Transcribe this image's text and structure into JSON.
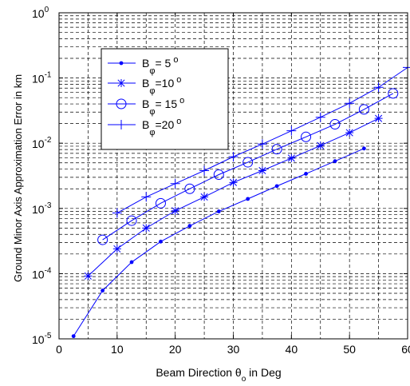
{
  "chart_data": {
    "type": "line",
    "xlabel": "Beam Direction θo in Deg",
    "xlabel_main": "Beam Direction θ",
    "xlabel_sub": "o",
    "xlabel_tail": " in Deg",
    "ylabel": "Ground Minor Axis Approximation Error in km",
    "xlim": [
      0,
      60
    ],
    "ylim": [
      1e-05,
      1
    ],
    "yscale": "log",
    "grid": true,
    "legend_position": "top-left",
    "x_ticks": [
      "0",
      "10",
      "20",
      "30",
      "40",
      "50",
      "60"
    ],
    "y_ticks": [
      {
        "base": "10",
        "exp": "-5"
      },
      {
        "base": "10",
        "exp": "-4"
      },
      {
        "base": "10",
        "exp": "-3"
      },
      {
        "base": "10",
        "exp": "-2"
      },
      {
        "base": "10",
        "exp": "-1"
      },
      {
        "base": "10",
        "exp": "0"
      }
    ],
    "series": [
      {
        "name": "Bφ = 5 o",
        "legend": {
          "b": "B",
          "sub": "φ",
          "eq": "= 5",
          "sup": "o"
        },
        "marker": "dot",
        "x": [
          2.5,
          7.5,
          12.5,
          17.5,
          22.5,
          27.5,
          32.5,
          37.5,
          42.5,
          47.5,
          52.5
        ],
        "y": [
          1.1e-05,
          5.5e-05,
          0.00015,
          0.00031,
          0.00054,
          0.0009,
          0.0014,
          0.0022,
          0.0034,
          0.0053,
          0.0083
        ]
      },
      {
        "name": "Bφ =10 o",
        "legend": {
          "b": "B",
          "sub": "φ",
          "eq": "=10",
          "sup": "o"
        },
        "marker": "star",
        "x": [
          5,
          10,
          15,
          20,
          25,
          30,
          35,
          40,
          45,
          50,
          55
        ],
        "y": [
          9.2e-05,
          0.00024,
          0.0005,
          0.00092,
          0.0015,
          0.0025,
          0.0038,
          0.0059,
          0.0092,
          0.0145,
          0.024
        ]
      },
      {
        "name": "Bφ = 15 o",
        "legend": {
          "b": "B",
          "sub": "φ",
          "eq": "= 15",
          "sup": "o"
        },
        "marker": "circle",
        "x": [
          7.5,
          12.5,
          17.5,
          22.5,
          27.5,
          32.5,
          37.5,
          42.5,
          47.5,
          52.5,
          57.5
        ],
        "y": [
          0.00033,
          0.00065,
          0.0012,
          0.002,
          0.0033,
          0.0051,
          0.0081,
          0.0125,
          0.0195,
          0.033,
          0.058
        ]
      },
      {
        "name": "Bφ =20 o",
        "legend": {
          "b": "B",
          "sub": "φ",
          "eq": "=20",
          "sup": "o"
        },
        "marker": "plus",
        "x": [
          10,
          15,
          20,
          25,
          30,
          35,
          40,
          45,
          50,
          55,
          60
        ],
        "y": [
          0.00085,
          0.0015,
          0.0024,
          0.0038,
          0.0062,
          0.0097,
          0.0155,
          0.025,
          0.041,
          0.072,
          0.145
        ]
      }
    ],
    "colors": {
      "series": "#0000ff",
      "axis": "#000000",
      "grid": "#000000"
    }
  }
}
